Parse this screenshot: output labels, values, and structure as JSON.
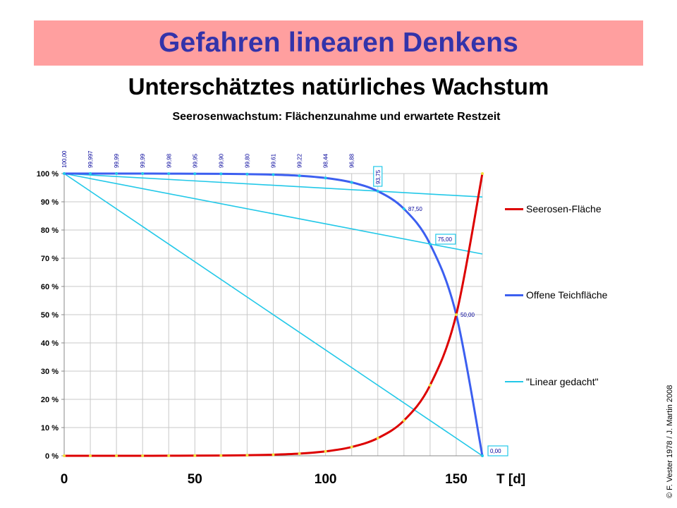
{
  "header": {
    "title": "Gefahren linearen Denkens",
    "subtitle": "Unterschätztes natürliches Wachstum"
  },
  "copyright": "© F. Vester 1978 / J. Martin 2008",
  "colors": {
    "banner_bg": "#ff9f9f",
    "banner_text": "#3333aa",
    "seerosen": "#dd0000",
    "teich": "#3c5ff0",
    "linear": "#22c8e8",
    "grid": "#c8c8c8",
    "marker_yellow": "#f0e040",
    "label_blue": "#000099"
  },
  "chart_data": {
    "type": "line",
    "title": "Seerosenwachstum:  Flächenzunahme und erwartete Restzeit",
    "xlabel": "T [d]",
    "ylabel": "",
    "xlim": [
      0,
      160
    ],
    "ylim": [
      0,
      100
    ],
    "grid": true,
    "legend_position": "right",
    "x_ticks": [
      0,
      50,
      100,
      150
    ],
    "y_tick_labels": [
      "0 %",
      "10 %",
      "20 %",
      "30 %",
      "40 %",
      "50 %",
      "60 %",
      "70 %",
      "80 %",
      "90 %",
      "100 %"
    ],
    "series": [
      {
        "name": "Seerosen-Fläche",
        "key": "seerosen",
        "x": [
          0,
          10,
          20,
          30,
          40,
          50,
          60,
          70,
          80,
          90,
          100,
          110,
          120,
          130,
          140,
          150,
          160
        ],
        "values": [
          0.0,
          0.003,
          0.01,
          0.01,
          0.02,
          0.05,
          0.1,
          0.2,
          0.39,
          0.78,
          1.56,
          3.12,
          6.25,
          12.5,
          25.0,
          50.0,
          100.0
        ]
      },
      {
        "name": "Offene Teichfläche",
        "key": "teich",
        "x": [
          0,
          10,
          20,
          30,
          40,
          50,
          60,
          70,
          80,
          90,
          100,
          110,
          120,
          130,
          140,
          150,
          160
        ],
        "values": [
          100.0,
          99.997,
          99.99,
          99.99,
          99.98,
          99.95,
          99.9,
          99.8,
          99.61,
          99.22,
          98.44,
          96.88,
          93.75,
          87.5,
          75.0,
          50.0,
          0.0
        ]
      },
      {
        "name": "\"Linear gedacht\"",
        "key": "linear",
        "lines": [
          {
            "x": [
              0,
              160
            ],
            "values": [
              100,
              0
            ]
          },
          {
            "x": [
              0,
              160
            ],
            "values": [
              100,
              71.5
            ]
          },
          {
            "x": [
              0,
              160
            ],
            "values": [
              100,
              91.7
            ]
          }
        ]
      }
    ],
    "top_value_labels": [
      {
        "x": 0,
        "text": "100,00"
      },
      {
        "x": 10,
        "text": "99,997"
      },
      {
        "x": 20,
        "text": "99,99"
      },
      {
        "x": 30,
        "text": "99,99"
      },
      {
        "x": 40,
        "text": "99,98"
      },
      {
        "x": 50,
        "text": "99,95"
      },
      {
        "x": 60,
        "text": "99,90"
      },
      {
        "x": 70,
        "text": "99,80"
      },
      {
        "x": 80,
        "text": "99,61"
      },
      {
        "x": 90,
        "text": "99,22"
      },
      {
        "x": 100,
        "text": "98,44"
      },
      {
        "x": 110,
        "text": "96,88"
      }
    ],
    "point_labels": [
      {
        "x": 120,
        "y": 93.75,
        "text": "93,75",
        "boxed": true,
        "rotated": true
      },
      {
        "x": 130,
        "y": 87.5,
        "text": "87,50",
        "boxed": false,
        "rotated": false
      },
      {
        "x": 140,
        "y": 75.0,
        "text": "75,00",
        "boxed": true,
        "rotated": false
      },
      {
        "x": 150,
        "y": 50.0,
        "text": "50,00",
        "boxed": false,
        "rotated": false
      },
      {
        "x": 160,
        "y": 0.0,
        "text": "0,00",
        "boxed": true,
        "rotated": false
      }
    ]
  }
}
